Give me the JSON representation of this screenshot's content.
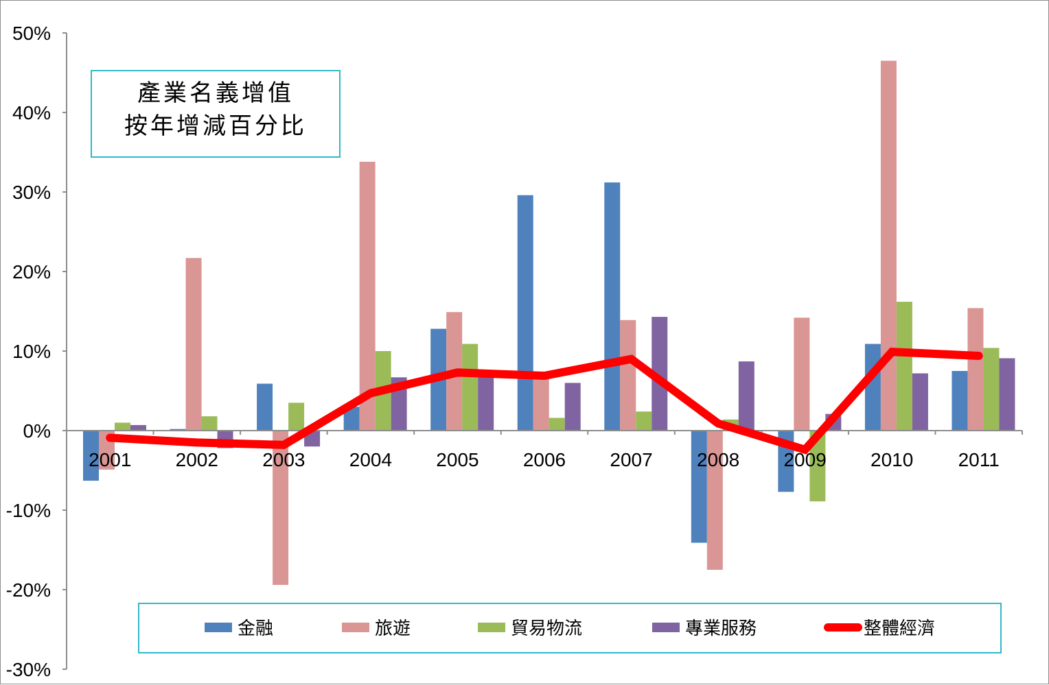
{
  "chart_data": {
    "type": "bar",
    "title_lines": [
      "產業名義增值",
      "按年增減百分比"
    ],
    "categories": [
      "2001",
      "2002",
      "2003",
      "2004",
      "2005",
      "2006",
      "2007",
      "2008",
      "2009",
      "2010",
      "2011"
    ],
    "ylim": [
      -30,
      50
    ],
    "ytick_values": [
      50,
      40,
      30,
      20,
      10,
      0,
      -10,
      -20,
      -30
    ],
    "ytick_labels": [
      "50%",
      "40%",
      "30%",
      "20%",
      "10%",
      "0%",
      "-10%",
      "-20%",
      "-30%"
    ],
    "xlabel": "",
    "ylabel": "",
    "grid": false,
    "legend_position": "bottom",
    "series": [
      {
        "name": "金融",
        "type": "bar",
        "color": "#4f81bd",
        "values": [
          -6.3,
          0.2,
          5.9,
          3.0,
          12.8,
          29.6,
          31.2,
          -14.1,
          -7.7,
          10.9,
          7.5
        ]
      },
      {
        "name": "旅遊",
        "type": "bar",
        "color": "#d99694",
        "values": [
          -4.9,
          21.7,
          -19.4,
          33.8,
          14.9,
          7.0,
          13.9,
          -17.5,
          14.2,
          46.5,
          15.4
        ]
      },
      {
        "name": "貿易物流",
        "type": "bar",
        "color": "#9bbb59",
        "values": [
          1.0,
          1.8,
          3.5,
          10.0,
          10.9,
          1.6,
          2.4,
          1.4,
          -8.9,
          16.2,
          10.4
        ]
      },
      {
        "name": "專業服務",
        "type": "bar",
        "color": "#8064a2",
        "values": [
          0.7,
          -2.2,
          -2.0,
          6.7,
          6.9,
          6.0,
          14.3,
          8.7,
          2.1,
          7.2,
          9.1
        ]
      },
      {
        "name": "整體經濟",
        "type": "line",
        "color": "#ff0000",
        "values": [
          -0.9,
          -1.5,
          -1.8,
          4.7,
          7.3,
          6.9,
          9.0,
          0.9,
          -2.4,
          9.9,
          9.4
        ]
      }
    ]
  }
}
